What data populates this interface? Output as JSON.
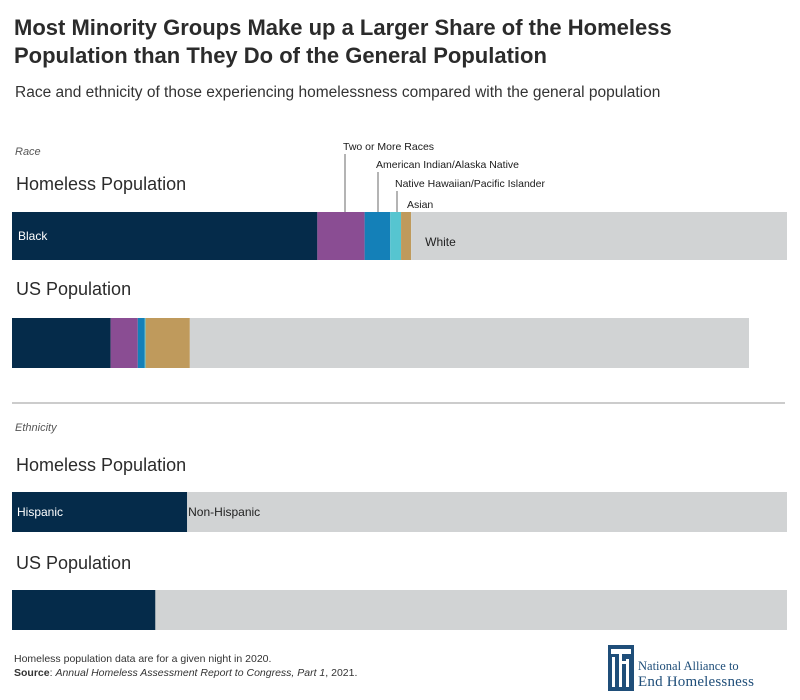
{
  "header": {
    "title": "Most Minority Groups Make up a Larger Share of the Homeless Population than They Do of the General Population",
    "subtitle": "Race and ethnicity of those experiencing homelessness compared with the general population"
  },
  "chart_data": [
    {
      "type": "bar",
      "orientation": "horizontal-stacked",
      "section_label": "Race",
      "categories": [
        "Homeless Population",
        "US Population"
      ],
      "series": [
        {
          "name": "Black",
          "color": "#052b4a",
          "values": [
            39.4,
            12.7
          ]
        },
        {
          "name": "Two or More Races",
          "color": "#8a4d93",
          "values": [
            6.1,
            3.5
          ]
        },
        {
          "name": "American Indian/Alaska Native",
          "color": "#1480b8",
          "values": [
            3.3,
            0.9
          ]
        },
        {
          "name": "Native Hawaiian/Pacific Islander",
          "color": "#56c5d0",
          "values": [
            1.4,
            0.1
          ]
        },
        {
          "name": "Asian",
          "color": "#bf9a5c",
          "values": [
            1.3,
            5.7
          ]
        },
        {
          "name": "White",
          "color": "#d1d3d4",
          "values": [
            48.5,
            72.0
          ]
        }
      ],
      "xlim": [
        0,
        100
      ]
    },
    {
      "type": "bar",
      "orientation": "horizontal-stacked",
      "section_label": "Ethnicity",
      "categories": [
        "Homeless Population",
        "US Population"
      ],
      "series": [
        {
          "name": "Hispanic",
          "color": "#052b4a",
          "values": [
            22.6,
            18.5
          ]
        },
        {
          "name": "Non-Hispanic",
          "color": "#d1d3d4",
          "values": [
            77.4,
            81.5
          ]
        }
      ],
      "xlim": [
        0,
        100
      ]
    }
  ],
  "footer": {
    "note": "Homeless population data are for a given night in 2020.",
    "source_label": "Source",
    "source_title": "Annual Homeless Assessment Report to Congress, Part 1",
    "source_year": ", 2021."
  },
  "logo": {
    "line1": "National Alliance to",
    "line2": "End Homelessness",
    "color": "#1f4e79"
  }
}
